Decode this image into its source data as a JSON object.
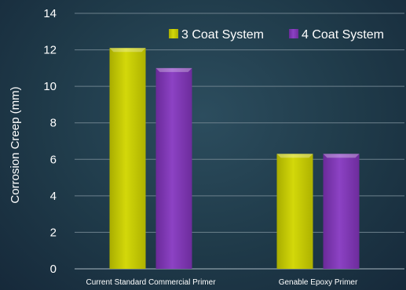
{
  "chart_data": {
    "type": "bar",
    "categories": [
      "Current Standard Commercial Primer",
      "Genable Epoxy Primer"
    ],
    "series": [
      {
        "name": "3 Coat System",
        "values": [
          12.1,
          6.3
        ],
        "color": "#c2c800"
      },
      {
        "name": "4 Coat System",
        "values": [
          11.0,
          6.3
        ],
        "color": "#7e35b2"
      }
    ],
    "ylabel": "Corrosion Creep (mm)",
    "ylim": [
      0,
      14
    ],
    "yticks": [
      0,
      2,
      4,
      6,
      8,
      10,
      12,
      14
    ],
    "grid": true,
    "legend": "top-right"
  }
}
